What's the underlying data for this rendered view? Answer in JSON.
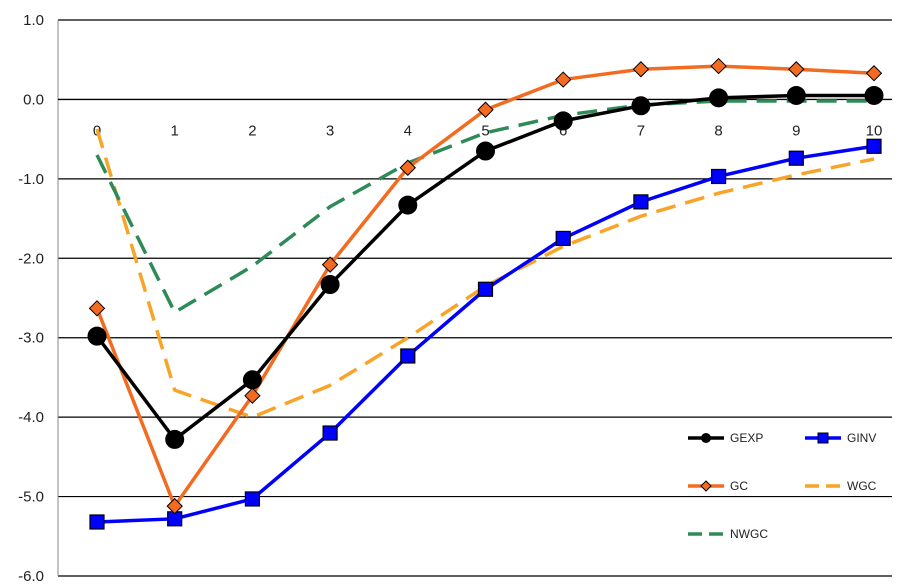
{
  "chart_data": {
    "type": "line",
    "title": "",
    "xlabel": "",
    "ylabel": "",
    "x": [
      0,
      1,
      2,
      3,
      4,
      5,
      6,
      7,
      8,
      9,
      10
    ],
    "x_tick_labels": [
      "0",
      "1",
      "2",
      "3",
      "4",
      "5",
      "6",
      "7",
      "8",
      "9",
      "10"
    ],
    "ylim": [
      -6.0,
      1.0
    ],
    "y_tick_labels": [
      "1.0",
      "0.0",
      "-1.0",
      "-2.0",
      "-3.0",
      "-4.0",
      "-5.0",
      "-6.0"
    ],
    "y_ticks": [
      1.0,
      0.0,
      -1.0,
      -2.0,
      -3.0,
      -4.0,
      -5.0,
      -6.0
    ],
    "grid": true,
    "legend_position": "bottom-right",
    "series": [
      {
        "name": "GEXP",
        "color": "#000000",
        "marker": "circle",
        "dash": "solid",
        "values": [
          -2.98,
          -4.28,
          -3.53,
          -2.33,
          -1.33,
          -0.65,
          -0.27,
          -0.08,
          0.02,
          0.05,
          0.05
        ]
      },
      {
        "name": "GINV",
        "color": "#0000ff",
        "marker": "square",
        "dash": "solid",
        "values": [
          -5.32,
          -5.28,
          -5.03,
          -4.2,
          -3.23,
          -2.39,
          -1.75,
          -1.29,
          -0.97,
          -0.74,
          -0.59
        ]
      },
      {
        "name": "GC",
        "color": "#f26b21",
        "marker": "diamond",
        "dash": "solid",
        "values": [
          -2.63,
          -5.12,
          -3.73,
          -2.08,
          -0.86,
          -0.13,
          0.25,
          0.38,
          0.42,
          0.38,
          0.33
        ]
      },
      {
        "name": "WGC",
        "color": "#f7a428",
        "marker": "none",
        "dash": "dashed",
        "values": [
          -0.37,
          -3.66,
          -4.0,
          -3.6,
          -3.0,
          -2.35,
          -1.85,
          -1.47,
          -1.18,
          -0.95,
          -0.75
        ]
      },
      {
        "name": "NWGC",
        "color": "#2e8b57",
        "marker": "none",
        "dash": "dashed",
        "values": [
          -0.7,
          -2.68,
          -2.1,
          -1.35,
          -0.8,
          -0.42,
          -0.2,
          -0.07,
          -0.02,
          -0.02,
          -0.02
        ]
      }
    ]
  }
}
